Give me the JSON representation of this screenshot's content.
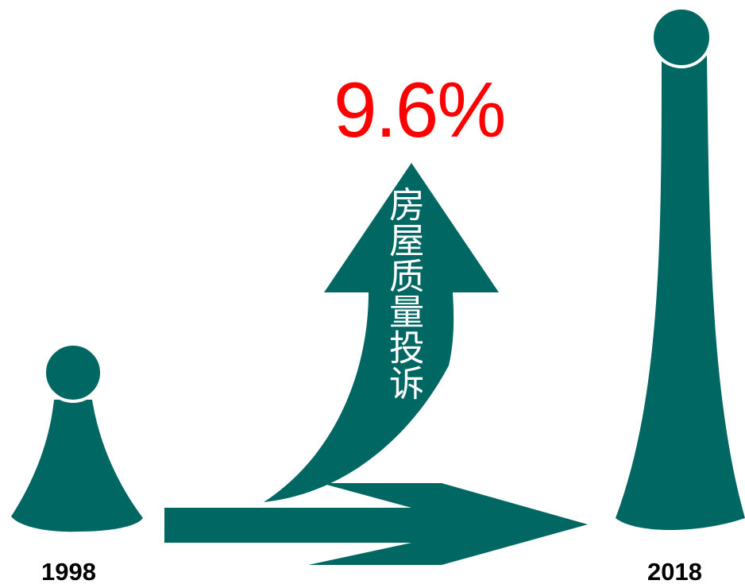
{
  "growth_label": "9.6%",
  "arrow_caption": "房屋质量投诉",
  "start_year": "1998",
  "end_year": "2018",
  "colors": {
    "shape": "#006763",
    "highlight": "#ff0000",
    "text": "#000000"
  },
  "icons": [
    "small-pawn-icon",
    "large-pawn-icon",
    "curved-up-arrow-icon",
    "right-arrow-icon"
  ]
}
